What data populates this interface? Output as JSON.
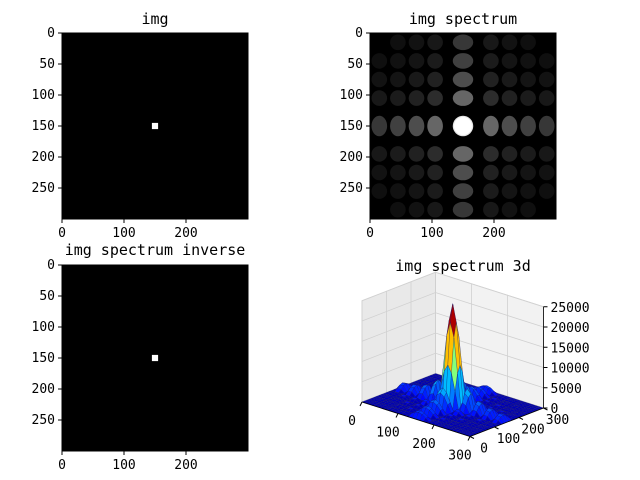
{
  "figure": {
    "window_title": "",
    "background": "#ffffff"
  },
  "chart_data": [
    {
      "type": "heatmap",
      "title": "img",
      "description_values": "single bright square on black",
      "xticks": [
        "0",
        "100",
        "200"
      ],
      "yticks": [
        "0",
        "50",
        "100",
        "150",
        "200",
        "250"
      ],
      "xlim": [
        0,
        300
      ],
      "ylim": [
        300,
        0
      ],
      "image": {
        "width": 300,
        "height": 300,
        "bright_square": {
          "x0": 145,
          "x1": 155,
          "y0": 145,
          "y1": 155,
          "value": 1
        }
      },
      "colormap": "gray"
    },
    {
      "type": "heatmap",
      "title": "img spectrum",
      "xticks": [
        "0",
        "100",
        "200"
      ],
      "yticks": [
        "0",
        "50",
        "100",
        "150",
        "200",
        "250"
      ],
      "xlim": [
        0,
        300
      ],
      "ylim": [
        300,
        0
      ],
      "image": {
        "width": 300,
        "height": 300,
        "pattern": "sinc2d",
        "center": [
          150,
          150
        ],
        "period": 30
      },
      "colormap": "gray"
    },
    {
      "type": "heatmap",
      "title": "img spectrum inverse",
      "xticks": [
        "0",
        "100",
        "200"
      ],
      "yticks": [
        "0",
        "50",
        "100",
        "150",
        "200",
        "250"
      ],
      "xlim": [
        0,
        300
      ],
      "ylim": [
        300,
        0
      ],
      "image": {
        "width": 300,
        "height": 300,
        "bright_square": {
          "x0": 145,
          "x1": 155,
          "y0": 145,
          "y1": 155,
          "value": 1
        }
      },
      "colormap": "gray"
    },
    {
      "type": "surface3d",
      "title": "img spectrum 3d",
      "x_ticks": [
        "0",
        "100",
        "200",
        "300"
      ],
      "y_ticks": [
        "0",
        "100",
        "200",
        "300"
      ],
      "z_ticks": [
        "0",
        "5000",
        "10000",
        "15000",
        "20000",
        "25000"
      ],
      "xlim": [
        0,
        300
      ],
      "ylim": [
        0,
        300
      ],
      "zlim": [
        0,
        25000
      ],
      "peak": {
        "x": 150,
        "y": 150,
        "z": 25000
      },
      "colormap": "jet"
    }
  ]
}
